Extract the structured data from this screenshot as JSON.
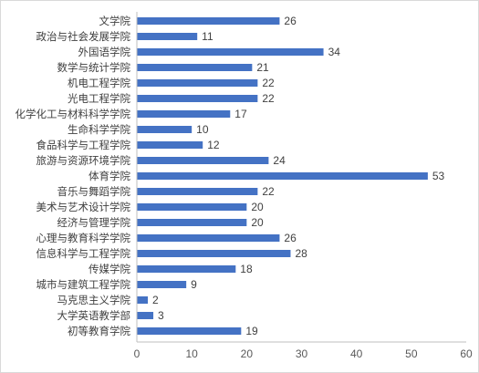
{
  "chart_data": {
    "type": "bar",
    "orientation": "horizontal",
    "categories": [
      "文学院",
      "政治与社会发展学院",
      "外国语学院",
      "数学与统计学院",
      "机电工程学院",
      "光电工程学院",
      "化学化工与材料科学学院",
      "生命科学学院",
      "食品科学与工程学院",
      "旅游与资源环境学院",
      "体育学院",
      "音乐与舞蹈学院",
      "美术与艺术设计学院",
      "经济与管理学院",
      "心理与教育科学学院",
      "信息科学与工程学院",
      "传媒学院",
      "城市与建筑工程学院",
      "马克思主义学院",
      "大学英语教学部",
      "初等教育学院"
    ],
    "values": [
      26,
      11,
      34,
      21,
      22,
      22,
      17,
      10,
      12,
      24,
      53,
      22,
      20,
      20,
      26,
      28,
      18,
      9,
      2,
      3,
      19
    ],
    "xlim": [
      0,
      60
    ],
    "xticks": [
      0,
      10,
      20,
      30,
      40,
      50,
      60
    ],
    "bar_color": "#4472c4",
    "grid": false,
    "data_labels": true,
    "title": "",
    "xlabel": "",
    "ylabel": ""
  }
}
